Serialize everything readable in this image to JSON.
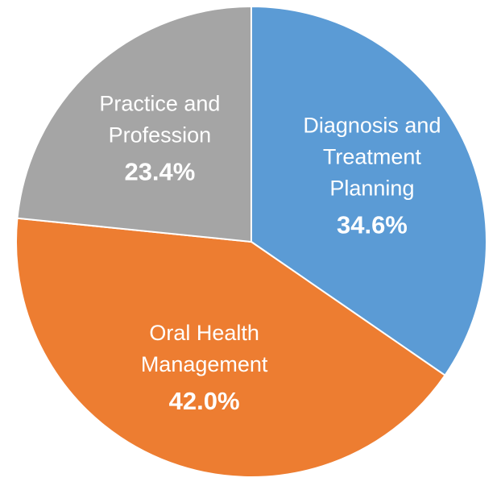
{
  "chart_data": {
    "type": "pie",
    "title": "",
    "slices": [
      {
        "label_lines": [
          "Diagnosis and",
          "Treatment",
          "Planning"
        ],
        "value": 34.6,
        "value_text": "34.6%",
        "color": "#5b9bd5"
      },
      {
        "label_lines": [
          "Oral Health",
          "Management"
        ],
        "value": 42.0,
        "value_text": "42.0%",
        "color": "#ed7d31"
      },
      {
        "label_lines": [
          "Practice and",
          "Profession"
        ],
        "value": 23.4,
        "value_text": "23.4%",
        "color": "#a5a5a5"
      }
    ],
    "start": "12 o'clock",
    "direction": "clockwise",
    "legend": "none",
    "data_labels": "inside slices, white text"
  }
}
